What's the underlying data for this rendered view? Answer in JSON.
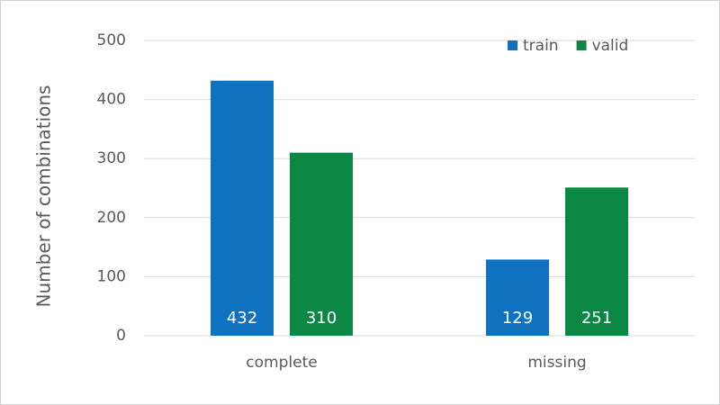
{
  "chart_data": {
    "type": "bar",
    "y_label": "Number of combinations",
    "categories": [
      "complete",
      "missing"
    ],
    "series": [
      {
        "name": "train",
        "color": "#0e72c1",
        "values": [
          432,
          129
        ]
      },
      {
        "name": "valid",
        "color": "#0a8843",
        "values": [
          310,
          251
        ]
      }
    ],
    "ylim": [
      0,
      500
    ],
    "yticks": [
      0,
      100,
      200,
      300,
      400,
      500
    ],
    "grid": true,
    "legend": "top-right"
  }
}
